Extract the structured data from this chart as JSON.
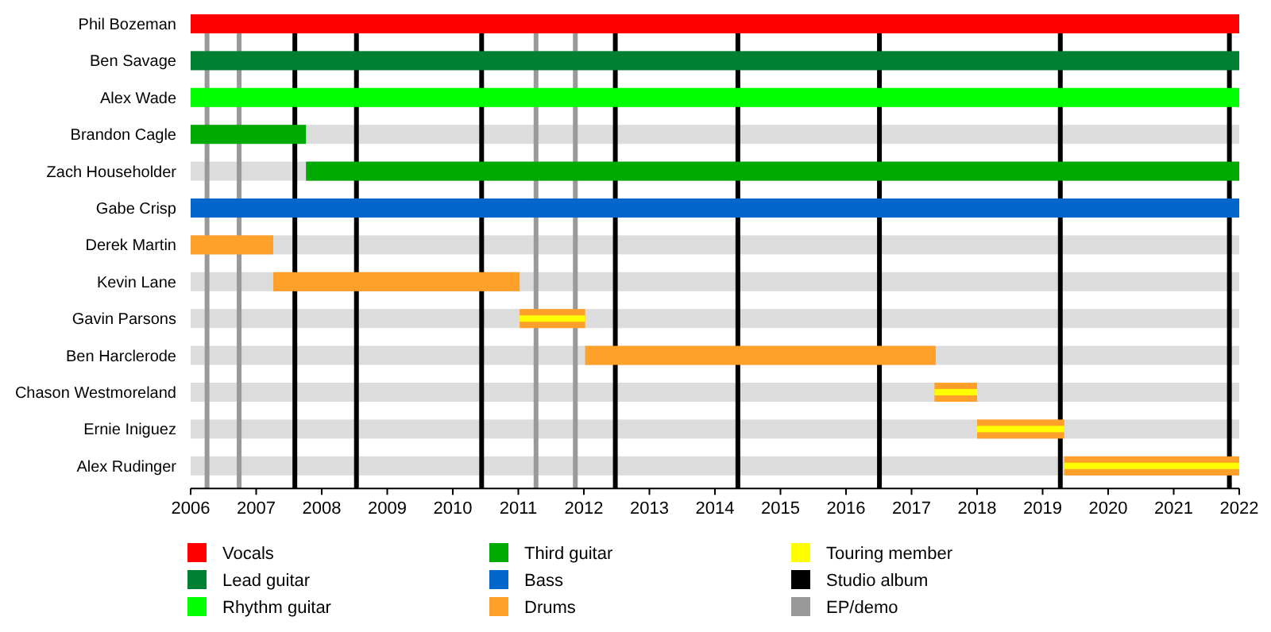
{
  "chart_data": {
    "type": "bar",
    "orientation": "horizontal",
    "categories": [
      "Phil Bozeman",
      "Ben Savage",
      "Alex Wade",
      "Brandon Cagle",
      "Zach Householder",
      "Gabe Crisp",
      "Derek Martin",
      "Kevin Lane",
      "Gavin Parsons",
      "Ben Harclerode",
      "Chason Westmoreland",
      "Ernie Iniguez",
      "Alex Rudinger"
    ],
    "series": [
      {
        "name": "Vocals",
        "color": "#ff0000",
        "base": [
          2006,
          null,
          null,
          null,
          null,
          null,
          null,
          null,
          null,
          null,
          null,
          null,
          null
        ],
        "values": [
          16,
          null,
          null,
          null,
          null,
          null,
          null,
          null,
          null,
          null,
          null,
          null,
          null
        ]
      },
      {
        "name": "Lead guitar",
        "color": "#008033",
        "base": [
          null,
          2006,
          null,
          null,
          null,
          null,
          null,
          null,
          null,
          null,
          null,
          null,
          null
        ],
        "values": [
          null,
          16,
          null,
          null,
          null,
          null,
          null,
          null,
          null,
          null,
          null,
          null,
          null
        ]
      },
      {
        "name": "Rhythm guitar",
        "color": "#00ff00",
        "base": [
          null,
          null,
          2006,
          null,
          null,
          null,
          null,
          null,
          null,
          null,
          null,
          null,
          null
        ],
        "values": [
          null,
          null,
          16,
          null,
          null,
          null,
          null,
          null,
          null,
          null,
          null,
          null,
          null
        ]
      },
      {
        "name": "Third guitar",
        "color": "#00aa00",
        "base": [
          null,
          null,
          null,
          2006,
          2007.76,
          null,
          null,
          null,
          null,
          null,
          null,
          null,
          null
        ],
        "values": [
          null,
          null,
          null,
          1.76,
          14.24,
          null,
          null,
          null,
          null,
          null,
          null,
          null,
          null
        ]
      },
      {
        "name": "Bass",
        "color": "#0066cc",
        "base": [
          null,
          null,
          null,
          null,
          null,
          2006,
          null,
          null,
          null,
          null,
          null,
          null,
          null
        ],
        "values": [
          null,
          null,
          null,
          null,
          null,
          16,
          null,
          null,
          null,
          null,
          null,
          null,
          null
        ]
      },
      {
        "name": "Drums",
        "color": "#ffa02a",
        "base": [
          null,
          null,
          null,
          null,
          null,
          null,
          2006,
          2007.26,
          2011.02,
          2012.02,
          2017.35,
          2018.0,
          2019.33
        ],
        "values": [
          null,
          null,
          null,
          null,
          null,
          null,
          1.26,
          3.76,
          1.0,
          5.35,
          0.65,
          1.33,
          2.67
        ]
      },
      {
        "name": "Touring member",
        "color": "#ffff00",
        "base": [
          null,
          null,
          null,
          null,
          null,
          null,
          null,
          null,
          2011.02,
          null,
          2017.35,
          2018.0,
          2019.33
        ],
        "values": [
          null,
          null,
          null,
          null,
          null,
          null,
          null,
          null,
          1.0,
          null,
          0.65,
          1.33,
          2.67
        ]
      }
    ],
    "ref_lines": [
      {
        "axis": "x",
        "value": 2006.25,
        "label": "EP/demo",
        "color": "#999999"
      },
      {
        "axis": "x",
        "value": 2006.74,
        "color": "#999999"
      },
      {
        "axis": "x",
        "value": 2011.27,
        "color": "#999999"
      },
      {
        "axis": "x",
        "value": 2011.87,
        "color": "#999999"
      },
      {
        "axis": "x",
        "value": 2007.59,
        "label": "Studio album",
        "color": "#000000"
      },
      {
        "axis": "x",
        "value": 2008.53,
        "color": "#000000"
      },
      {
        "axis": "x",
        "value": 2010.44,
        "color": "#000000"
      },
      {
        "axis": "x",
        "value": 2012.48,
        "color": "#000000"
      },
      {
        "axis": "x",
        "value": 2014.35,
        "color": "#000000"
      },
      {
        "axis": "x",
        "value": 2016.51,
        "color": "#000000"
      },
      {
        "axis": "x",
        "value": 2019.27,
        "color": "#000000"
      },
      {
        "axis": "x",
        "value": 2021.85,
        "color": "#000000"
      }
    ],
    "xlim": [
      2006,
      2022
    ],
    "xticks": [
      2006,
      2007,
      2008,
      2009,
      2010,
      2011,
      2012,
      2013,
      2014,
      2015,
      2016,
      2017,
      2018,
      2019,
      2020,
      2021,
      2022
    ],
    "legend": "bottom"
  }
}
